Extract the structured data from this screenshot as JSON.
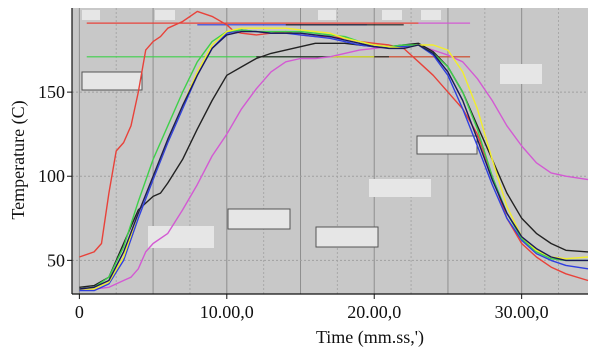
{
  "chart_data": {
    "type": "line",
    "xlabel": "Time (mm.ss,')",
    "ylabel": "Temperature (C)",
    "xlim": [
      -0.5,
      34.5
    ],
    "ylim": [
      30,
      200
    ],
    "x_ticks": [
      0,
      10,
      20,
      30
    ],
    "x_tick_labels": [
      "0",
      "10.00,0",
      "20.00,0",
      "30.00,0"
    ],
    "y_ticks": [
      50,
      100,
      150
    ],
    "y_tick_labels": [
      "50",
      "100",
      "150"
    ],
    "grid": true,
    "colors": {
      "plot_background": "#c8c8c8",
      "grid": "#9a9a9a",
      "red": "#e8423a",
      "magenta": "#d35ad3",
      "black": "#222222",
      "blue": "#2f3fe0",
      "green": "#3fd04a",
      "yellow": "#f2ee2a",
      "navy": "#1a1a5a"
    },
    "reference_lines": [
      {
        "color": "#e8423a",
        "y": 191,
        "x": [
          0.5,
          23
        ]
      },
      {
        "color": "#d35ad3",
        "y": 191,
        "x": [
          23,
          26.5
        ]
      },
      {
        "color": "#3fd04a",
        "y": 171,
        "x": [
          0.5,
          26.5
        ]
      },
      {
        "color": "#e8423a",
        "y": 171,
        "x": [
          20,
          26.5
        ]
      },
      {
        "color": "#2f3fe0",
        "y": 190,
        "x": [
          8,
          19.5
        ]
      },
      {
        "color": "#222222",
        "y": 171,
        "x": [
          12,
          21
        ]
      },
      {
        "color": "#f2ee2a",
        "y": 171,
        "x": [
          17,
          20
        ]
      },
      {
        "color": "#222222",
        "y": 190,
        "x": [
          14,
          22
        ]
      }
    ],
    "series": [
      {
        "color": "#e8423a",
        "x": [
          0,
          1,
          1.5,
          2,
          2.5,
          3,
          3.5,
          4,
          4.5,
          5,
          5.5,
          6,
          7,
          8,
          9,
          10,
          10.5,
          11,
          12,
          13,
          14,
          15,
          16,
          17,
          18,
          19,
          20,
          21,
          22,
          22.5,
          23,
          24,
          25,
          26,
          27,
          28,
          29,
          30,
          31,
          32,
          33,
          34.5
        ],
        "y": [
          52,
          55,
          60,
          90,
          115,
          120,
          130,
          150,
          175,
          180,
          183,
          188,
          192,
          198,
          195,
          190,
          186,
          185,
          184,
          185,
          186,
          184,
          183,
          183,
          182,
          180,
          179,
          178,
          176,
          172,
          168,
          160,
          150,
          140,
          125,
          100,
          75,
          60,
          52,
          46,
          42,
          38
        ]
      },
      {
        "color": "#d35ad3",
        "x": [
          0,
          1,
          2,
          3,
          3.5,
          4,
          4.5,
          5,
          6,
          7,
          8,
          9,
          10,
          11,
          12,
          13,
          14,
          15,
          16,
          17,
          18,
          19,
          20,
          21,
          22,
          23,
          24,
          25,
          26,
          27,
          28,
          29,
          30,
          31,
          32,
          33,
          34.5
        ],
        "y": [
          33,
          33,
          34,
          38,
          40,
          45,
          55,
          60,
          66,
          80,
          95,
          112,
          125,
          140,
          152,
          162,
          168,
          170,
          170,
          171,
          173,
          175,
          176,
          177,
          177,
          178,
          175,
          172,
          168,
          158,
          145,
          130,
          118,
          108,
          102,
          100,
          98
        ]
      },
      {
        "color": "#222222",
        "x": [
          0,
          1,
          2,
          3,
          4,
          5,
          5.5,
          6,
          7,
          8,
          9,
          10,
          11,
          12,
          13,
          14,
          15,
          16,
          17,
          18,
          19,
          20,
          21,
          22,
          23,
          24,
          25,
          26,
          27,
          28,
          29,
          30,
          31,
          32,
          33,
          34.5
        ],
        "y": [
          34,
          35,
          40,
          60,
          80,
          88,
          90,
          96,
          110,
          128,
          145,
          160,
          165,
          170,
          173,
          175,
          177,
          179,
          179,
          179,
          178,
          177,
          177,
          178,
          179,
          174,
          165,
          150,
          130,
          110,
          90,
          75,
          66,
          60,
          56,
          55
        ]
      },
      {
        "color": "#2f3fe0",
        "x": [
          0,
          1,
          2,
          3,
          4,
          5,
          6,
          7,
          8,
          9,
          10,
          11,
          12,
          13,
          14,
          15,
          16,
          17,
          18,
          19,
          20,
          21,
          22,
          23,
          24,
          25,
          26,
          27,
          28,
          29,
          30,
          31,
          32,
          33,
          34.5
        ],
        "y": [
          32,
          32,
          36,
          50,
          75,
          98,
          120,
          140,
          160,
          176,
          185,
          187,
          186,
          185,
          185,
          184,
          183,
          182,
          180,
          178,
          177,
          177,
          177,
          178,
          172,
          160,
          140,
          118,
          95,
          75,
          62,
          54,
          50,
          47,
          45
        ]
      },
      {
        "color": "#3fd04a",
        "x": [
          0,
          1,
          2,
          3,
          4,
          5,
          6,
          7,
          8,
          9,
          10,
          11,
          12,
          13,
          14,
          15,
          16,
          17,
          18,
          19,
          20,
          21,
          22,
          23,
          24,
          25,
          26,
          27,
          28,
          29,
          30,
          31,
          32,
          33,
          34.5
        ],
        "y": [
          33,
          34,
          40,
          58,
          85,
          110,
          130,
          150,
          168,
          180,
          186,
          187,
          186,
          186,
          186,
          186,
          185,
          184,
          183,
          180,
          178,
          177,
          178,
          178,
          173,
          165,
          150,
          128,
          100,
          78,
          63,
          55,
          51,
          50,
          50
        ]
      },
      {
        "color": "#f2ee2a",
        "x": [
          0,
          1,
          2,
          3,
          4,
          5,
          6,
          7,
          8,
          9,
          10,
          11,
          12,
          13,
          14,
          15,
          16,
          17,
          18,
          19,
          20,
          21,
          22,
          23,
          24,
          25,
          26,
          27,
          28,
          29,
          30,
          31,
          32,
          33,
          34.5
        ],
        "y": [
          33,
          33,
          37,
          52,
          78,
          100,
          122,
          142,
          162,
          178,
          186,
          188,
          188,
          188,
          188,
          187,
          186,
          185,
          182,
          180,
          178,
          177,
          176,
          178,
          178,
          175,
          162,
          140,
          110,
          82,
          64,
          56,
          52,
          51,
          52
        ]
      },
      {
        "color": "#1a1a5a",
        "x": [
          0,
          1,
          2,
          3,
          4,
          5,
          6,
          7,
          8,
          9,
          10,
          11,
          12,
          13,
          14,
          15,
          16,
          17,
          18,
          19,
          20,
          21,
          22,
          23,
          24,
          25,
          26,
          27,
          28,
          29,
          30,
          31,
          32,
          33,
          34.5
        ],
        "y": [
          33,
          34,
          38,
          55,
          78,
          100,
          122,
          142,
          160,
          176,
          184,
          186,
          186,
          185,
          185,
          185,
          184,
          183,
          181,
          179,
          177,
          176,
          176,
          178,
          173,
          162,
          145,
          122,
          98,
          78,
          64,
          57,
          52,
          50,
          50
        ]
      }
    ]
  }
}
